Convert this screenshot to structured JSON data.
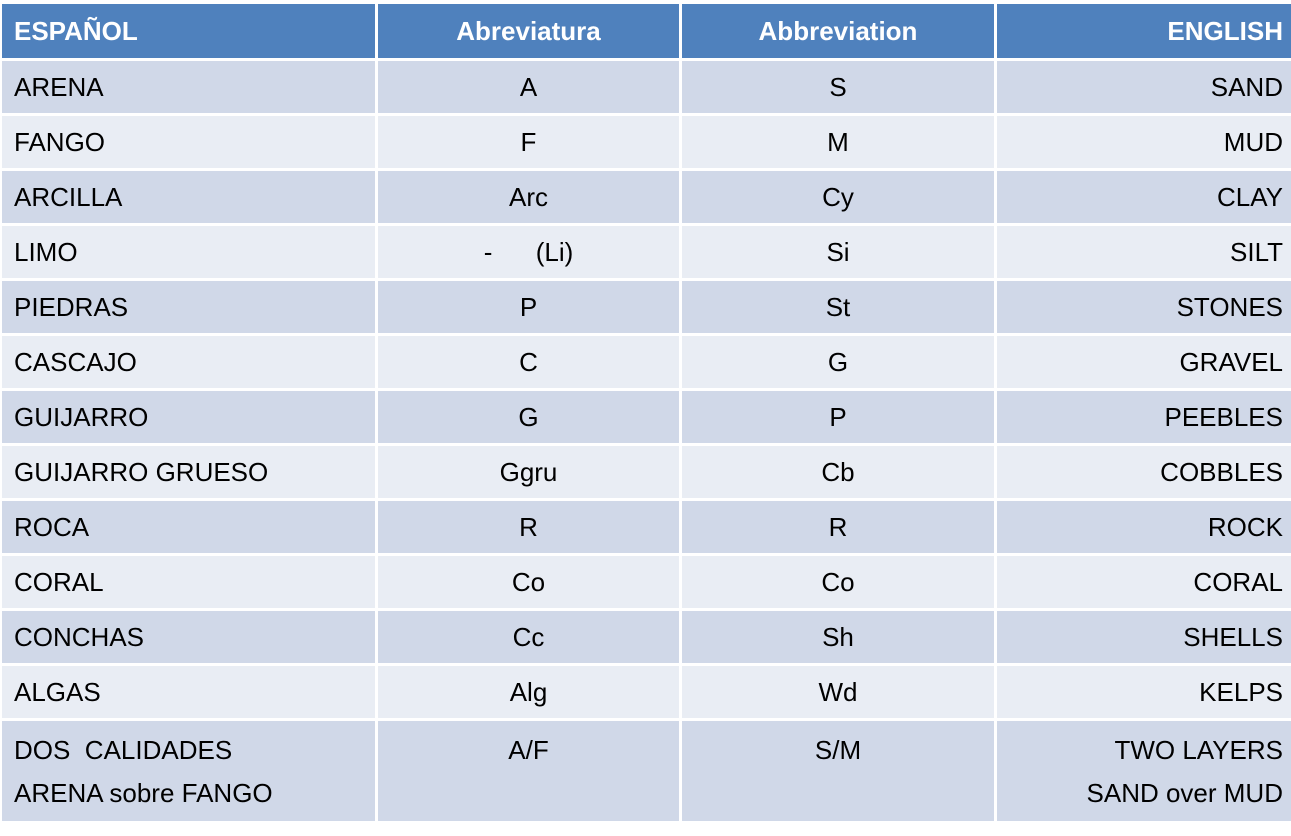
{
  "table": {
    "header": [
      "ESPAÑOL",
      "Abreviatura",
      "Abbreviation",
      "ENGLISH"
    ],
    "rows": [
      [
        "ARENA",
        "A",
        "S",
        "SAND"
      ],
      [
        "FANGO",
        "F",
        "M",
        "MUD"
      ],
      [
        "ARCILLA",
        "Arc",
        "Cy",
        "CLAY"
      ],
      [
        "LIMO",
        "-      (Li)",
        "Si",
        "SILT"
      ],
      [
        "PIEDRAS",
        "P",
        "St",
        "STONES"
      ],
      [
        "CASCAJO",
        "C",
        "G",
        "GRAVEL"
      ],
      [
        "GUIJARRO",
        "G",
        "P",
        "PEEBLES"
      ],
      [
        "GUIJARRO GRUESO",
        "Ggru",
        "Cb",
        "COBBLES"
      ],
      [
        "ROCA",
        "R",
        "R",
        "ROCK"
      ],
      [
        "CORAL",
        "Co",
        "Co",
        "CORAL"
      ],
      [
        "CONCHAS",
        "Cc",
        "Sh",
        "SHELLS"
      ],
      [
        "ALGAS",
        "Alg",
        "Wd",
        "KELPS"
      ],
      [
        [
          "DOS  CALIDADES",
          "ARENA sobre FANGO"
        ],
        "A/F",
        "S/M",
        [
          "TWO LAYERS",
          "SAND over MUD"
        ]
      ]
    ]
  }
}
